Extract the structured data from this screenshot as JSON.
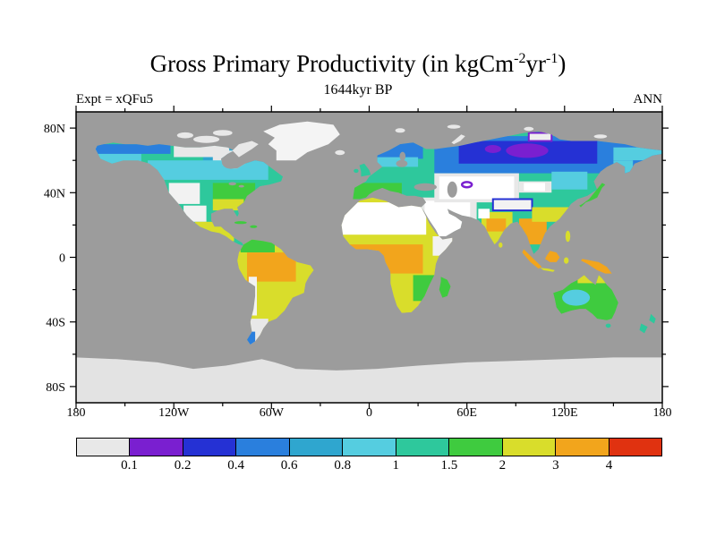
{
  "title": {
    "pre": "Gross Primary Productivity (in kgCm",
    "sup1": "-2",
    "mid": "yr",
    "sup2": "-1",
    "post": ")"
  },
  "subtitle": "1644kyr BP",
  "experiment_label": "Expt = xQFu5",
  "season_label": "ANN",
  "axes": {
    "lat_tick_labels": [
      "80N",
      "40N",
      "0",
      "40S",
      "80S"
    ],
    "lat_tick_values": [
      80,
      40,
      0,
      -40,
      -80
    ],
    "lon_tick_labels": [
      "180",
      "120W",
      "60W",
      "0",
      "60E",
      "120E",
      "180"
    ],
    "lon_tick_values": [
      -180,
      -120,
      -60,
      0,
      60,
      120,
      180
    ]
  },
  "colorbar": {
    "labels": [
      "0.1",
      "0.2",
      "0.4",
      "0.6",
      "0.8",
      "1",
      "1.5",
      "2",
      "3",
      "4"
    ],
    "colors": [
      "#e8e8e8",
      "#7a1fd0",
      "#2531d4",
      "#2a7fdd",
      "#2fa6cf",
      "#55cde0",
      "#2ec89c",
      "#3fcb3f",
      "#d9dd2b",
      "#f2a51c",
      "#e03210"
    ],
    "ocean_color": "#9c9c9c",
    "ice_color": "#e3e3e3"
  },
  "chart_data": {
    "type": "heatmap",
    "title": "Gross Primary Productivity (in kgCm-2yr-1)",
    "subtitle": "1644kyr BP",
    "experiment": "Expt = xQFu5",
    "season": "ANN",
    "units": "kgC m-2 yr-1",
    "projection": "equirectangular",
    "lon_range": [
      -180,
      180
    ],
    "lat_range": [
      -90,
      90
    ],
    "lon_tick_labels": [
      "180",
      "120W",
      "60W",
      "0",
      "60E",
      "120E",
      "180"
    ],
    "lat_tick_labels": [
      "80N",
      "40N",
      "0",
      "40S",
      "80S"
    ],
    "color_levels": [
      0.1,
      0.2,
      0.4,
      0.6,
      0.8,
      1,
      1.5,
      2,
      3,
      4
    ],
    "palette": [
      "#e8e8e8",
      "#7a1fd0",
      "#2531d4",
      "#2a7fdd",
      "#2fa6cf",
      "#55cde0",
      "#2ec89c",
      "#3fcb3f",
      "#d9dd2b",
      "#f2a51c",
      "#e03210"
    ],
    "legend_position": "bottom",
    "background_ocean": "grey (masked)",
    "regions": [
      {
        "region": "Amazon Basin",
        "approx_value": "2-3"
      },
      {
        "region": "Southeast Brazil",
        "approx_value": "2-3"
      },
      {
        "region": "Coastal Peru / Chile desert",
        "approx_value": "<0.1"
      },
      {
        "region": "Patagonia",
        "approx_value": "<0.1-0.2"
      },
      {
        "region": "Eastern North America",
        "approx_value": "1-2"
      },
      {
        "region": "Western US interior",
        "approx_value": "<0.1"
      },
      {
        "region": "Boreal Canada / Alaska",
        "approx_value": "0.4-1"
      },
      {
        "region": "Arctic tundra of Canada",
        "approx_value": "<0.1-0.2"
      },
      {
        "region": "Greenland ice sheet",
        "approx_value": "<0.1"
      },
      {
        "region": "Sahara and Arabia",
        "approx_value": "<0.1"
      },
      {
        "region": "Sahel",
        "approx_value": "1-2"
      },
      {
        "region": "Congo Basin / West Africa",
        "approx_value": "2-3"
      },
      {
        "region": "Southern Africa",
        "approx_value": "1.5-3"
      },
      {
        "region": "Europe",
        "approx_value": "0.8-1.5"
      },
      {
        "region": "Boreal Siberia",
        "approx_value": "0.2-0.6"
      },
      {
        "region": "Central Siberian Arctic",
        "approx_value": "0.1-0.2"
      },
      {
        "region": "Central Asia deserts",
        "approx_value": "<0.1"
      },
      {
        "region": "Tibetan Plateau",
        "approx_value": "<0.1"
      },
      {
        "region": "India",
        "approx_value": "2-3"
      },
      {
        "region": "Southeast Asia / Maritime Continent",
        "approx_value": "2-4"
      },
      {
        "region": "Northern China",
        "approx_value": "0.8-1.5"
      },
      {
        "region": "Australia interior",
        "approx_value": "0.6-1"
      },
      {
        "region": "Northern Australia",
        "approx_value": "1.5-2"
      },
      {
        "region": "New Zealand",
        "approx_value": "0.8-1"
      },
      {
        "region": "Antarctica",
        "approx_value": "<0.1"
      }
    ]
  }
}
